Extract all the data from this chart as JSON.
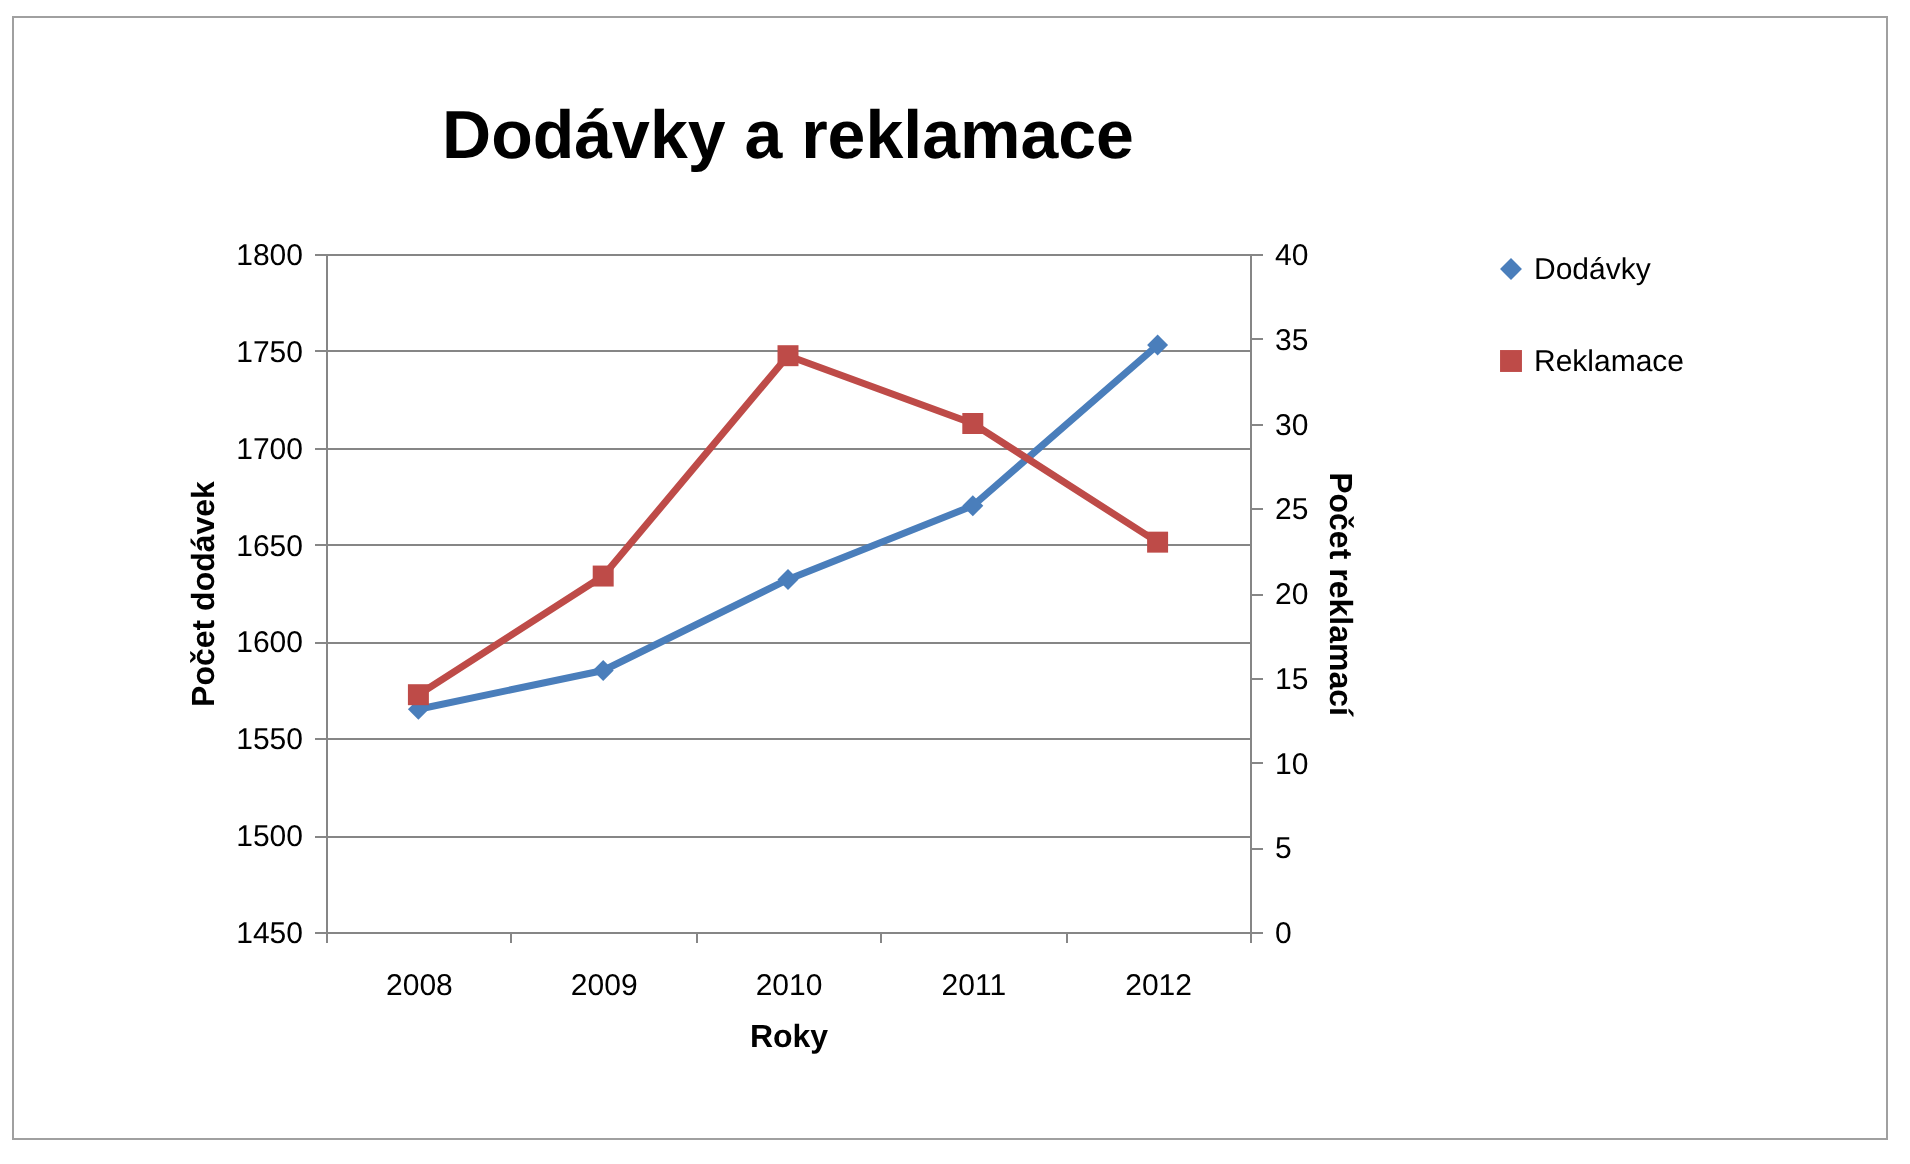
{
  "chart_data": {
    "type": "line",
    "title": "Dodávky a reklamace",
    "xlabel": "Roky",
    "ylabel": "Počet dodávek",
    "y2label": "Počet reklamací",
    "categories": [
      "2008",
      "2009",
      "2010",
      "2011",
      "2012"
    ],
    "series": [
      {
        "name": "Dodávky",
        "color": "#4a7ebb",
        "marker": "diamond",
        "values": [
          1565,
          1585,
          1632,
          1670,
          1753
        ]
      },
      {
        "name": "Reklamace",
        "color": "#be4b48",
        "marker": "square",
        "axis": "y2",
        "values": [
          14,
          21,
          34,
          30,
          23
        ]
      }
    ],
    "ylim": [
      1450,
      1800
    ],
    "yticks": [
      1450,
      1500,
      1550,
      1600,
      1650,
      1700,
      1750,
      1800
    ],
    "y2lim": [
      0,
      40
    ],
    "y2ticks": [
      0,
      5,
      10,
      15,
      20,
      25,
      30,
      35,
      40
    ],
    "grid": "y",
    "legend": "right",
    "line_style": "solid"
  }
}
